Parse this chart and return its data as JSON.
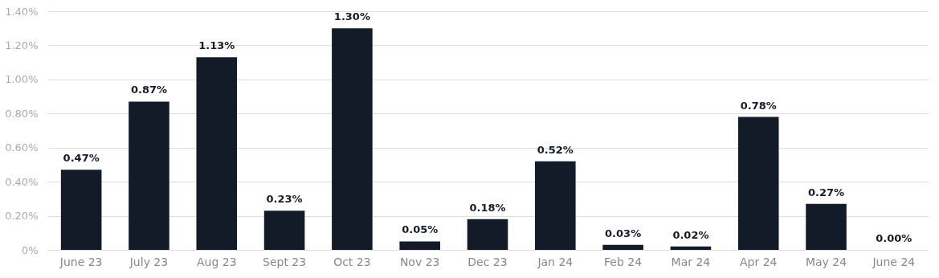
{
  "chart_data": {
    "type": "bar",
    "categories": [
      "June 23",
      "July 23",
      "Aug 23",
      "Sept 23",
      "Oct 23",
      "Nov 23",
      "Dec 23",
      "Jan 24",
      "Feb 24",
      "Mar 24",
      "Apr 24",
      "May 24",
      "June 24"
    ],
    "values": [
      0.47,
      0.87,
      1.13,
      0.23,
      1.3,
      0.05,
      0.18,
      0.52,
      0.03,
      0.02,
      0.78,
      0.27,
      0.0
    ],
    "value_labels": [
      "0.47%",
      "0.87%",
      "1.13%",
      "0.23%",
      "1.30%",
      "0.05%",
      "0.18%",
      "0.52%",
      "0.03%",
      "0.02%",
      "0.78%",
      "0.27%",
      "0.00%"
    ],
    "color": "#121b27",
    "ylim": [
      0,
      1.4
    ],
    "yticks": [
      {
        "value": 0,
        "label": "0%"
      },
      {
        "value": 0.2,
        "label": "0.20%"
      },
      {
        "value": 0.4,
        "label": "0.40%"
      },
      {
        "value": 0.6,
        "label": "0.60%"
      },
      {
        "value": 0.8,
        "label": "0.80%"
      },
      {
        "value": 1.0,
        "label": "1.00%"
      },
      {
        "value": 1.2,
        "label": "1.20%"
      },
      {
        "value": 1.4,
        "label": "1.40%"
      }
    ],
    "grid": "y"
  }
}
